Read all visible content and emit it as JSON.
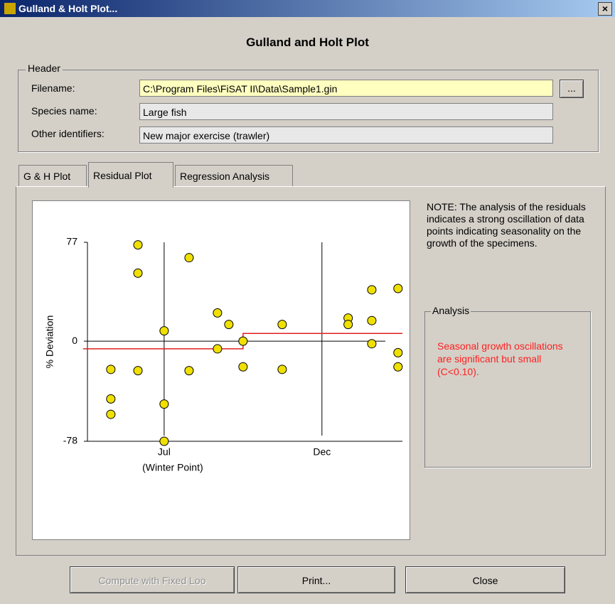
{
  "window": {
    "title": "Gulland & Holt Plot...",
    "close": "×"
  },
  "dialog": {
    "heading": "Gulland and Holt Plot"
  },
  "header": {
    "legend": "Header",
    "fields": [
      {
        "label": "Filename:",
        "value": "C:\\Program Files\\FiSAT II\\Data\\Sample1.gin"
      },
      {
        "label": "Species name:",
        "value": "Large fish"
      },
      {
        "label": "Other identifiers:",
        "value": "New major exercise (trawler)"
      }
    ],
    "browse": "..."
  },
  "tabs": [
    "G & H Plot",
    "Residual Plot",
    "Regression Analysis"
  ],
  "note": "NOTE: The analysis of the residuals indicates a strong oscillation of data points indicating seasonality on the growth of the specimens.",
  "analysis": {
    "legend": "Analysis",
    "text": "Seasonal growth oscillations are significant but small (C<0.10)."
  },
  "buttons": [
    "Compute with Fixed Loo",
    "Print...",
    "Close"
  ],
  "chart_data": {
    "type": "scatter",
    "ylabel": "% Deviation",
    "xlabel": "(Winter Point)",
    "xlim": [
      4.57,
      14.55
    ],
    "ylim": [
      -78,
      77
    ],
    "xticks": [
      {
        "value": 7,
        "label": "Jul"
      },
      {
        "value": 12,
        "label": "Dec"
      }
    ],
    "yticks": [
      77,
      0,
      -78
    ],
    "color": "#f0e000",
    "x": [
      5.31,
      5.31,
      5.31,
      6.17,
      6.17,
      6.17,
      7,
      7,
      7,
      7.79,
      7.79,
      8.69,
      8.69,
      9.05,
      9.5,
      9.5,
      10.74,
      10.74,
      12.83,
      12.83,
      13.58,
      13.58,
      13.58,
      14.41,
      14.41,
      14.41
    ],
    "values": [
      -22,
      -45,
      -57,
      75,
      53,
      -23,
      8,
      -49,
      -78,
      65,
      -23,
      22,
      -6,
      13,
      0,
      -20,
      13,
      -22,
      18,
      13,
      40,
      16,
      -2,
      41,
      -9,
      -20
    ],
    "fit": {
      "color": "#e02020",
      "x": [
        4.43,
        9.5,
        9.5,
        14.55
      ],
      "values": [
        -6,
        -6,
        6,
        6
      ]
    }
  }
}
